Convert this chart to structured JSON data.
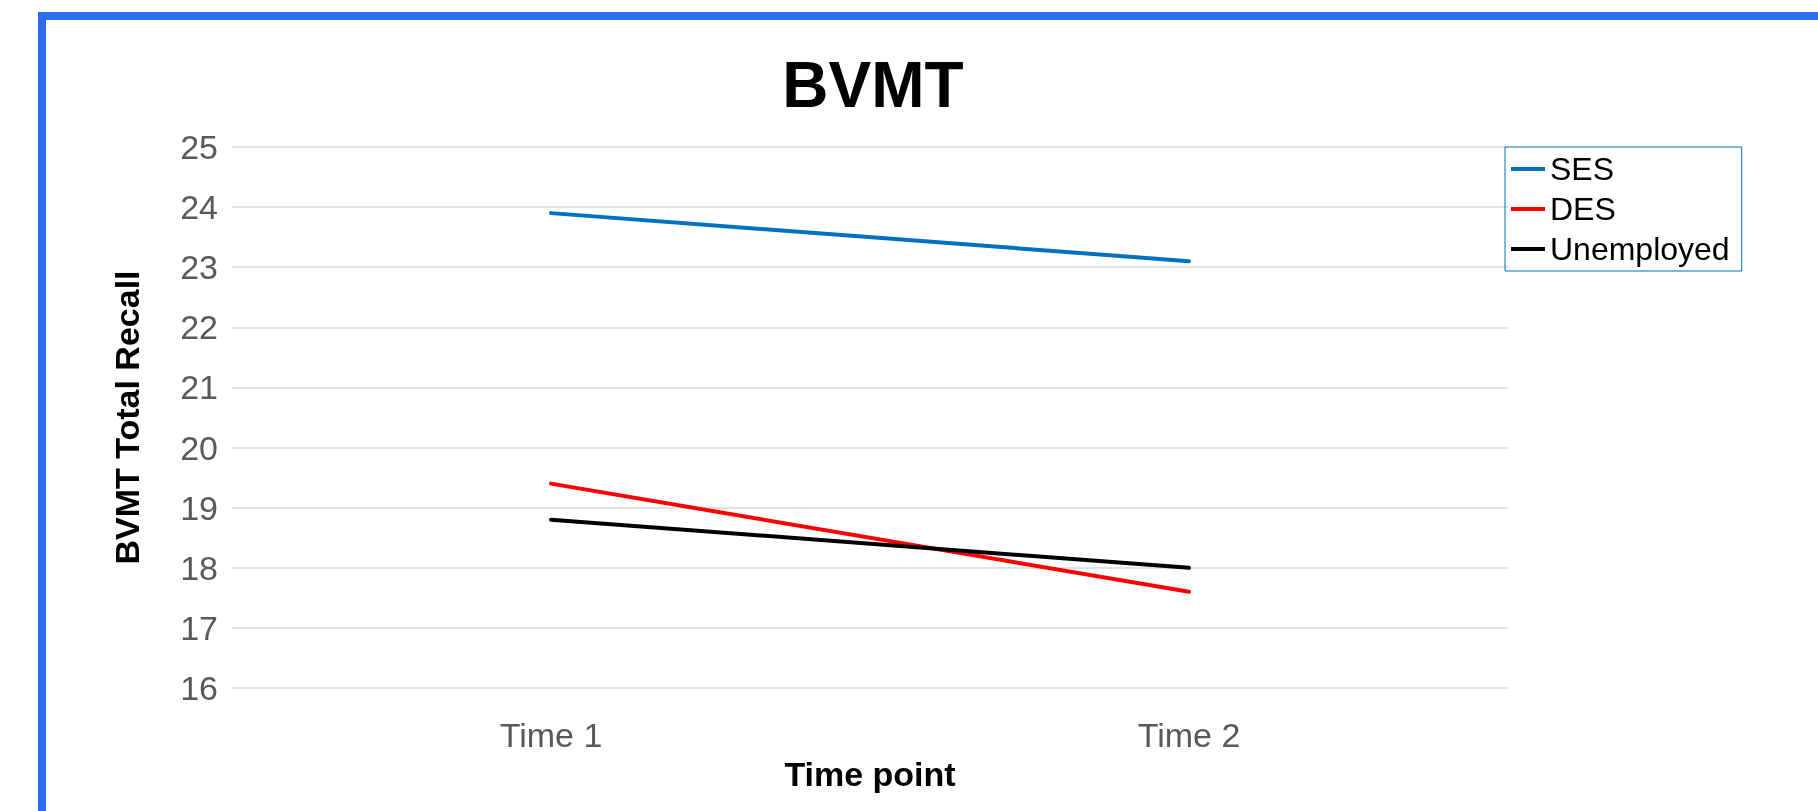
{
  "chart_data": {
    "type": "line",
    "title": "BVMT",
    "xlabel": "Time point",
    "ylabel": "BVMT Total Recall",
    "categories": [
      "Time 1",
      "Time 2"
    ],
    "series": [
      {
        "name": "SES",
        "color": "#0070c0",
        "values": [
          23.9,
          23.1
        ]
      },
      {
        "name": "DES",
        "color": "#ff0000",
        "values": [
          19.4,
          17.6
        ]
      },
      {
        "name": "Unemployed",
        "color": "#000000",
        "values": [
          18.8,
          18.0
        ]
      }
    ],
    "ylim": [
      16,
      25
    ],
    "yticks": [
      16,
      17,
      18,
      19,
      20,
      21,
      22,
      23,
      24,
      25
    ],
    "grid": "y",
    "legend": "top right",
    "marker": "none",
    "line_style": "solid"
  }
}
